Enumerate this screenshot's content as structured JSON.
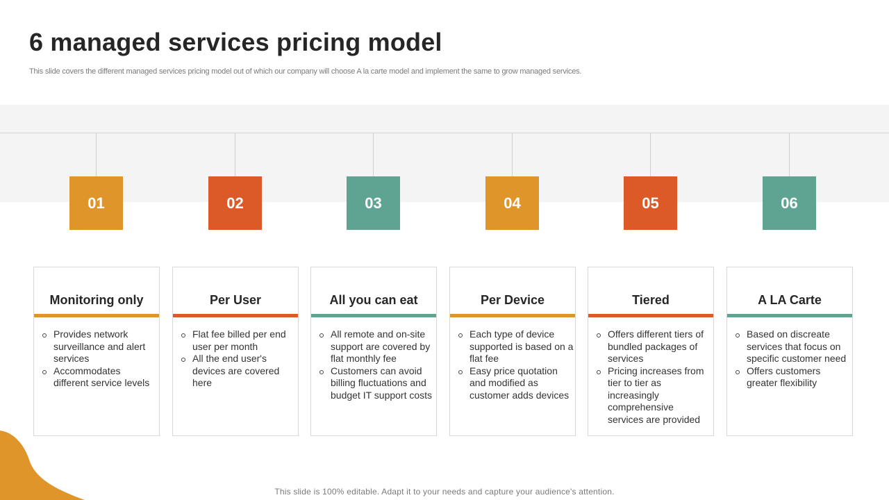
{
  "slide": {
    "title": "6 managed services pricing model",
    "subtitle": "This slide covers the different managed services pricing model out of which our company will choose A la carte model and implement the same to grow managed services.",
    "footer": "This slide is 100% editable. Adapt it to your needs and capture your audience's attention."
  },
  "colors": {
    "orange": "#E0952B",
    "red": "#DB5A28",
    "teal": "#5FA493",
    "blob": "#E0952B"
  },
  "models": [
    {
      "number": "01",
      "color": "#E0952B",
      "title": "Monitoring only",
      "bullets": [
        "Provides network surveillance and alert services",
        "Accommodates different service levels"
      ]
    },
    {
      "number": "02",
      "color": "#DB5A28",
      "title": "Per User",
      "bullets": [
        "Flat fee billed per end user per month",
        "All the end user's devices are covered here"
      ]
    },
    {
      "number": "03",
      "color": "#5FA493",
      "title": "All you can eat",
      "bullets": [
        "All remote and on-site support are covered by flat monthly fee",
        "Customers can avoid billing fluctuations and budget IT support costs"
      ]
    },
    {
      "number": "04",
      "color": "#E0952B",
      "title": "Per Device",
      "bullets": [
        "Each type of device supported is based on a flat fee",
        "Easy price quotation and modified as customer adds devices"
      ]
    },
    {
      "number": "05",
      "color": "#DB5A28",
      "title": "Tiered",
      "bullets": [
        "Offers different tiers of bundled packages of services",
        "Pricing increases from tier to tier as increasingly comprehensive services are provided"
      ]
    },
    {
      "number": "06",
      "color": "#5FA493",
      "title": "A LA Carte",
      "bullets": [
        "Based on discreate services that focus on specific customer need",
        "Offers customers greater flexibility"
      ]
    }
  ]
}
